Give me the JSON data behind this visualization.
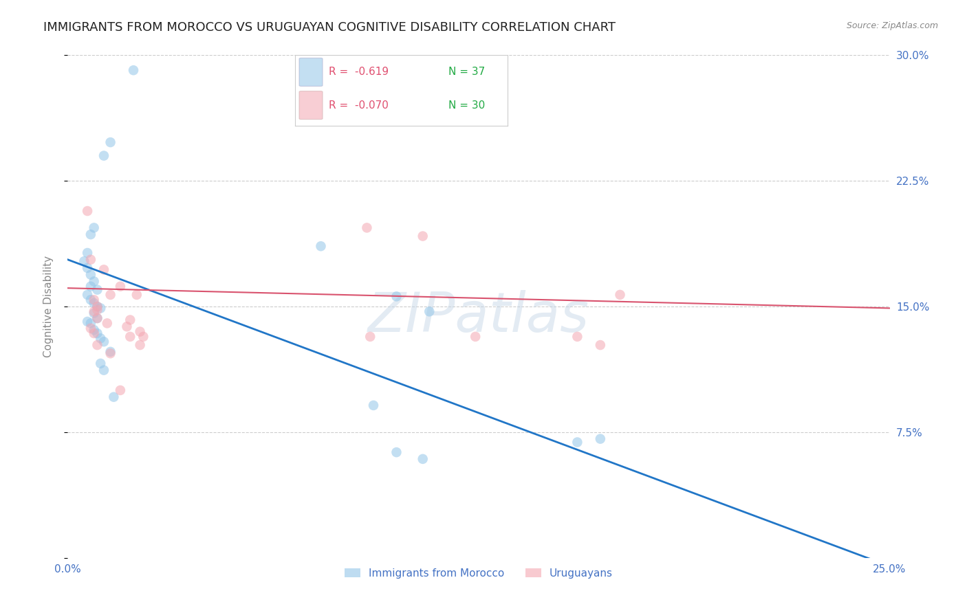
{
  "title": "IMMIGRANTS FROM MOROCCO VS URUGUAYAN COGNITIVE DISABILITY CORRELATION CHART",
  "source": "Source: ZipAtlas.com",
  "ylabel": "Cognitive Disability",
  "watermark": "ZIPatlas",
  "xlim": [
    0.0,
    0.25
  ],
  "ylim": [
    0.0,
    0.3
  ],
  "yticks": [
    0.0,
    0.075,
    0.15,
    0.225,
    0.3
  ],
  "ytick_labels": [
    "",
    "7.5%",
    "15.0%",
    "22.5%",
    "30.0%"
  ],
  "xticks": [
    0.0,
    0.05,
    0.1,
    0.15,
    0.2,
    0.25
  ],
  "xtick_labels": [
    "0.0%",
    "",
    "",
    "",
    "",
    "25.0%"
  ],
  "blue_scatter_x": [
    0.02,
    0.013,
    0.011,
    0.008,
    0.007,
    0.006,
    0.005,
    0.006,
    0.007,
    0.008,
    0.007,
    0.009,
    0.006,
    0.007,
    0.008,
    0.009,
    0.01,
    0.008,
    0.009,
    0.006,
    0.007,
    0.008,
    0.009,
    0.01,
    0.011,
    0.013,
    0.01,
    0.011,
    0.014,
    0.077,
    0.1,
    0.11,
    0.093,
    0.155,
    0.162,
    0.1,
    0.108
  ],
  "blue_scatter_y": [
    0.291,
    0.248,
    0.24,
    0.197,
    0.193,
    0.182,
    0.177,
    0.173,
    0.169,
    0.165,
    0.162,
    0.16,
    0.157,
    0.154,
    0.152,
    0.15,
    0.149,
    0.146,
    0.143,
    0.141,
    0.14,
    0.136,
    0.134,
    0.131,
    0.129,
    0.123,
    0.116,
    0.112,
    0.096,
    0.186,
    0.156,
    0.147,
    0.091,
    0.069,
    0.071,
    0.063,
    0.059
  ],
  "pink_scatter_x": [
    0.006,
    0.007,
    0.011,
    0.013,
    0.008,
    0.009,
    0.008,
    0.009,
    0.007,
    0.008,
    0.009,
    0.013,
    0.016,
    0.019,
    0.023,
    0.009,
    0.012,
    0.018,
    0.022,
    0.019,
    0.022,
    0.016,
    0.021,
    0.091,
    0.108,
    0.092,
    0.124,
    0.155,
    0.162,
    0.168
  ],
  "pink_scatter_y": [
    0.207,
    0.178,
    0.172,
    0.157,
    0.154,
    0.15,
    0.147,
    0.143,
    0.137,
    0.134,
    0.127,
    0.122,
    0.162,
    0.142,
    0.132,
    0.148,
    0.14,
    0.138,
    0.135,
    0.132,
    0.127,
    0.1,
    0.157,
    0.197,
    0.192,
    0.132,
    0.132,
    0.132,
    0.127,
    0.157
  ],
  "blue_line_x": [
    0.0,
    0.25
  ],
  "blue_line_y": [
    0.178,
    -0.005
  ],
  "pink_line_x": [
    0.0,
    0.25
  ],
  "pink_line_y": [
    0.161,
    0.149
  ],
  "blue_scatter_color": "#93c5e8",
  "pink_scatter_color": "#f4a7b2",
  "blue_line_color": "#2176c7",
  "pink_line_color": "#d9536e",
  "legend_r_blue": "R =  -0.619",
  "legend_n_blue": "N = 37",
  "legend_r_pink": "R =  -0.070",
  "legend_n_pink": "N = 30",
  "legend_r_color": "#e05070",
  "legend_n_color": "#22aa44",
  "legend_label_blue": "Immigrants from Morocco",
  "legend_label_pink": "Uruguayans",
  "title_fontsize": 13,
  "axis_label_fontsize": 11,
  "tick_fontsize": 11,
  "tick_color": "#4472c4",
  "ylabel_color": "#888888",
  "background_color": "#ffffff",
  "grid_color": "#cccccc",
  "grid_linestyle": "--",
  "watermark_color": "#c8d8e8",
  "watermark_alpha": 0.5,
  "watermark_fontsize": 58
}
